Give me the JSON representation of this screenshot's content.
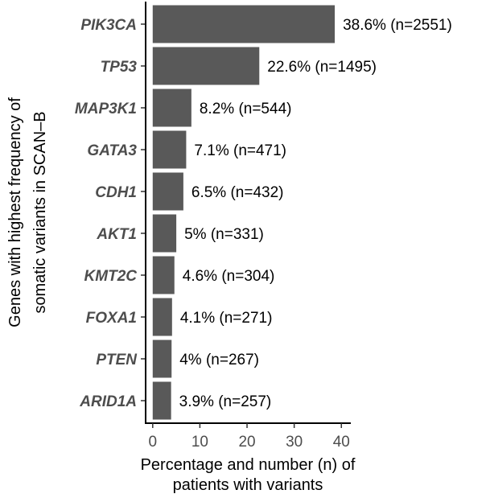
{
  "chart_data": {
    "type": "bar",
    "orientation": "horizontal",
    "categories": [
      "PIK3CA",
      "TP53",
      "MAP3K1",
      "GATA3",
      "CDH1",
      "AKT1",
      "KMT2C",
      "FOXA1",
      "PTEN",
      "ARID1A"
    ],
    "values": [
      38.6,
      22.6,
      8.2,
      7.1,
      6.5,
      5,
      4.6,
      4.1,
      4,
      3.9
    ],
    "counts": [
      2551,
      1495,
      544,
      471,
      432,
      331,
      304,
      271,
      267,
      257
    ],
    "data_labels": [
      "38.6% (n=2551)",
      "22.6% (n=1495)",
      "8.2% (n=544)",
      "7.1% (n=471)",
      "6.5% (n=432)",
      "5% (n=331)",
      "4.6% (n=304)",
      "4.1% (n=271)",
      "4% (n=267)",
      "3.9% (n=257)"
    ],
    "xlabel": [
      "Percentage and number (n) of",
      "patients with variants"
    ],
    "ylabel": [
      "Genes with highest frequency of",
      "somatic variants in SCAN–B"
    ],
    "xlim": [
      -1.5,
      42
    ],
    "xticks": [
      0,
      10,
      20,
      30,
      40
    ],
    "grid": false,
    "bar_color": "#595959"
  }
}
